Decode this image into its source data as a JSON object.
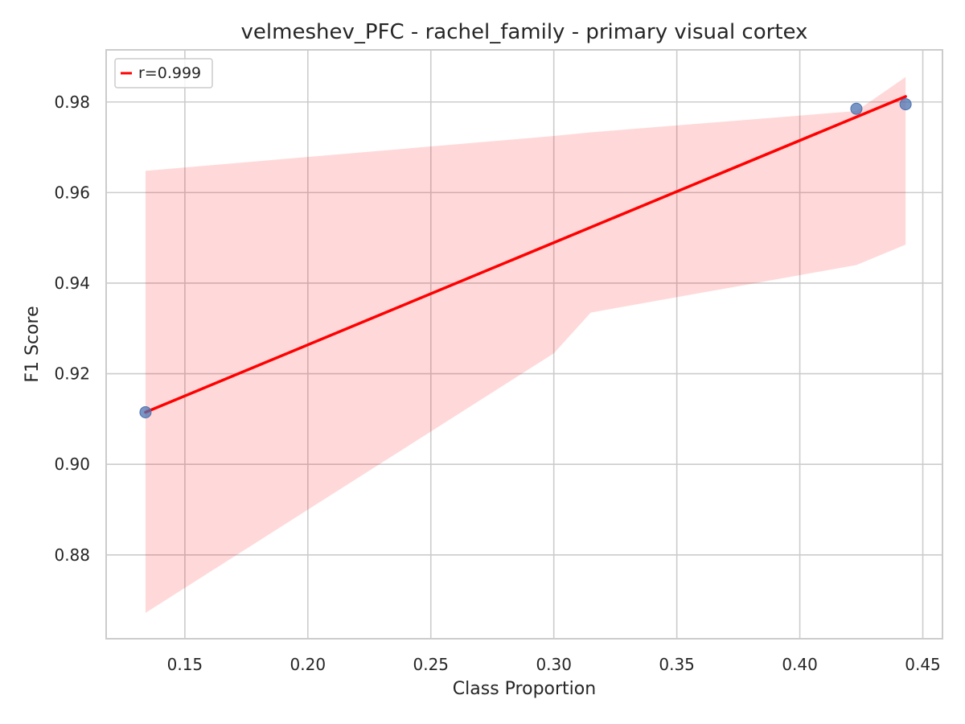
{
  "chart_data": {
    "type": "scatter",
    "title": "velmeshev_PFC - rachel_family - primary visual cortex",
    "xlabel": "Class Proportion",
    "ylabel": "F1 Score",
    "xlim": [
      0.118,
      0.458
    ],
    "ylim": [
      0.8615,
      0.9915
    ],
    "x_ticks": [
      0.15,
      0.2,
      0.25,
      0.3,
      0.35,
      0.4,
      0.45
    ],
    "x_tick_labels": [
      "0.15",
      "0.20",
      "0.25",
      "0.30",
      "0.35",
      "0.40",
      "0.45"
    ],
    "y_ticks": [
      0.88,
      0.9,
      0.92,
      0.94,
      0.96,
      0.98
    ],
    "y_tick_labels": [
      "0.88",
      "0.90",
      "0.92",
      "0.94",
      "0.96",
      "0.98"
    ],
    "grid": true,
    "legend_position": "top-left",
    "points": {
      "x": [
        0.134,
        0.423,
        0.443
      ],
      "y": [
        0.9115,
        0.9785,
        0.9795
      ],
      "color": "#4c72b0"
    },
    "regression": {
      "label": "r=0.999",
      "color": "#ff0000",
      "x": [
        0.134,
        0.443
      ],
      "y": [
        0.9115,
        0.9812
      ]
    },
    "confidence_band": {
      "color": "#ff0000",
      "x": [
        0.134,
        0.3,
        0.315,
        0.423,
        0.443
      ],
      "upper": [
        0.9648,
        0.9725,
        0.9733,
        0.978,
        0.9855
      ],
      "lower": [
        0.8672,
        0.9245,
        0.9335,
        0.944,
        0.9485
      ]
    }
  }
}
